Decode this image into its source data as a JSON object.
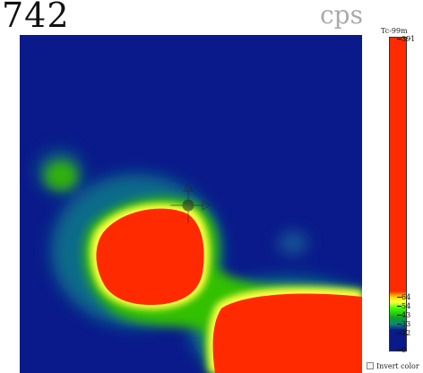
{
  "count": {
    "value": "742",
    "unit": "cps"
  },
  "colorbar": {
    "title": "Tc-99m",
    "ticks": [
      "391",
      "64",
      "54",
      "43",
      "33",
      "22",
      "0"
    ]
  },
  "controls": {
    "invert_label": "Invert color"
  },
  "colors": {
    "background": "#0a1a8a",
    "hot": "#ff2a00",
    "yellow": "#ffff40",
    "green": "#40ff00"
  }
}
